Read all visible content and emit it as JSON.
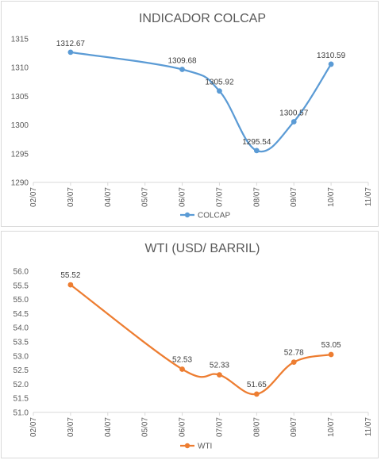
{
  "chart_data": [
    {
      "type": "line",
      "title": "INDICADOR COLCAP",
      "categories": [
        "02/07",
        "03/07",
        "04/07",
        "05/07",
        "06/07",
        "07/07",
        "08/07",
        "09/07",
        "10/07",
        "11/07"
      ],
      "series": [
        {
          "name": "COLCAP",
          "color": "#5b9bd5",
          "points": [
            {
              "x": "03/07",
              "y": 1312.67
            },
            {
              "x": "06/07",
              "y": 1309.68
            },
            {
              "x": "07/07",
              "y": 1305.92
            },
            {
              "x": "08/07",
              "y": 1295.54
            },
            {
              "x": "09/07",
              "y": 1300.57
            },
            {
              "x": "10/07",
              "y": 1310.59
            }
          ]
        }
      ],
      "ylim": [
        1290,
        1315
      ],
      "yticks": [
        1290,
        1295,
        1300,
        1305,
        1310,
        1315
      ],
      "grid": false,
      "legend": "bottom",
      "smooth": true
    },
    {
      "type": "line",
      "title": "WTI (USD/ BARRIL)",
      "categories": [
        "02/07",
        "03/07",
        "04/07",
        "05/07",
        "06/07",
        "07/07",
        "08/07",
        "09/07",
        "10/07",
        "11/07"
      ],
      "series": [
        {
          "name": "WTI",
          "color": "#ed7d31",
          "points": [
            {
              "x": "03/07",
              "y": 55.52
            },
            {
              "x": "06/07",
              "y": 52.53
            },
            {
              "x": "07/07",
              "y": 52.33
            },
            {
              "x": "08/07",
              "y": 51.65
            },
            {
              "x": "09/07",
              "y": 52.78
            },
            {
              "x": "10/07",
              "y": 53.05
            }
          ]
        }
      ],
      "ylim": [
        51,
        56
      ],
      "yticks": [
        51,
        51.5,
        52,
        52.5,
        53,
        53.5,
        54,
        54.5,
        55,
        55.5,
        56
      ],
      "grid": false,
      "legend": "bottom",
      "smooth": true
    }
  ]
}
